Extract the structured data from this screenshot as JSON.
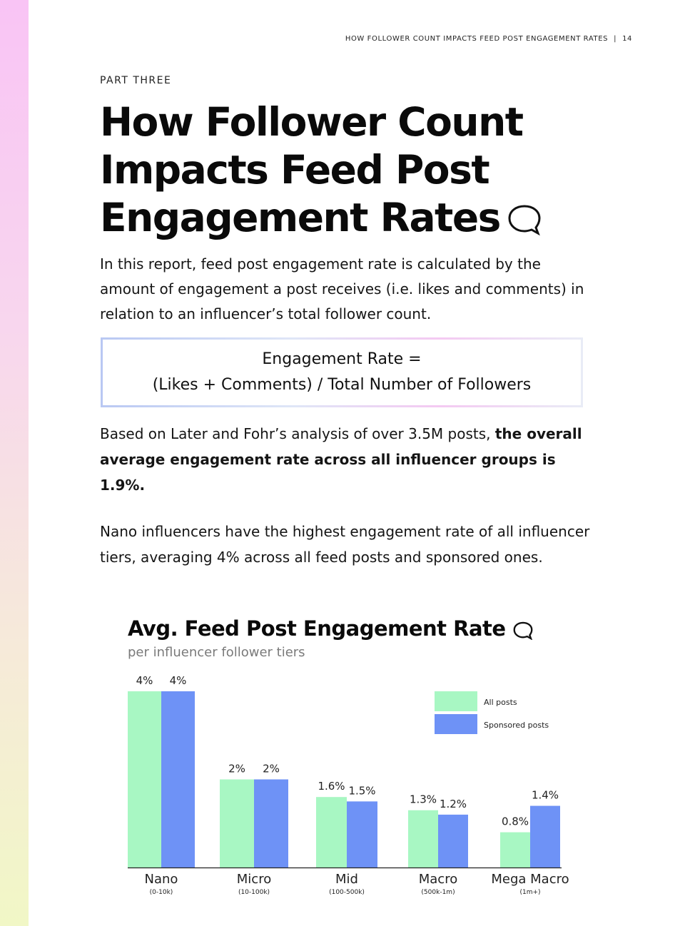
{
  "header": {
    "running_title": "HOW FOLLOWER COUNT IMPACTS FEED POST ENGAGEMENT RATES",
    "separator": "|",
    "page_number": "14"
  },
  "section": {
    "eyebrow": "PART THREE",
    "title_lines": [
      "How Follower Count",
      "Impacts Feed Post",
      "Engagement Rates"
    ]
  },
  "intro": "In this report, feed post engagement rate is calculated by the amount of engagement a post receives (i.e. likes and comments) in relation to an influencer’s total follower count.",
  "formula": {
    "line1": "Engagement Rate =",
    "line2": "(Likes + Comments) / Total Number of Followers"
  },
  "finding": {
    "plain": "Based on Later and Fohr’s analysis of over 3.5M posts, ",
    "bold": "the overall average engagement rate across all influencer groups is 1.9%."
  },
  "nano_note": "Nano influencers have the highest engagement rate of all influencer tiers, averaging 4% across all feed posts and sponsored ones.",
  "colors": {
    "all_posts": "#a8f7c3",
    "sponsored_posts": "#6e92f6",
    "axis": "#222222"
  },
  "chart_data": {
    "type": "bar",
    "title": "Avg. Feed Post Engagement Rate",
    "subtitle": "per influencer follower tiers",
    "categories": [
      "Nano",
      "Micro",
      "Mid",
      "Macro",
      "Mega Macro"
    ],
    "category_ranges": [
      "(0-10k)",
      "(10-100k)",
      "(100-500k)",
      "(500k-1m)",
      "(1m+)"
    ],
    "series": [
      {
        "name": "All posts",
        "values": [
          4,
          2,
          1.6,
          1.3,
          0.8
        ],
        "labels": [
          "4%",
          "2%",
          "1.6%",
          "1.3%",
          "0.8%"
        ]
      },
      {
        "name": "Sponsored posts",
        "values": [
          4,
          2,
          1.5,
          1.2,
          1.4
        ],
        "labels": [
          "4%",
          "2%",
          "1.5%",
          "1.2%",
          "1.4%"
        ]
      }
    ],
    "ylim": [
      0,
      4
    ],
    "unit": "%",
    "grid": false,
    "legend_position": "top-right"
  }
}
